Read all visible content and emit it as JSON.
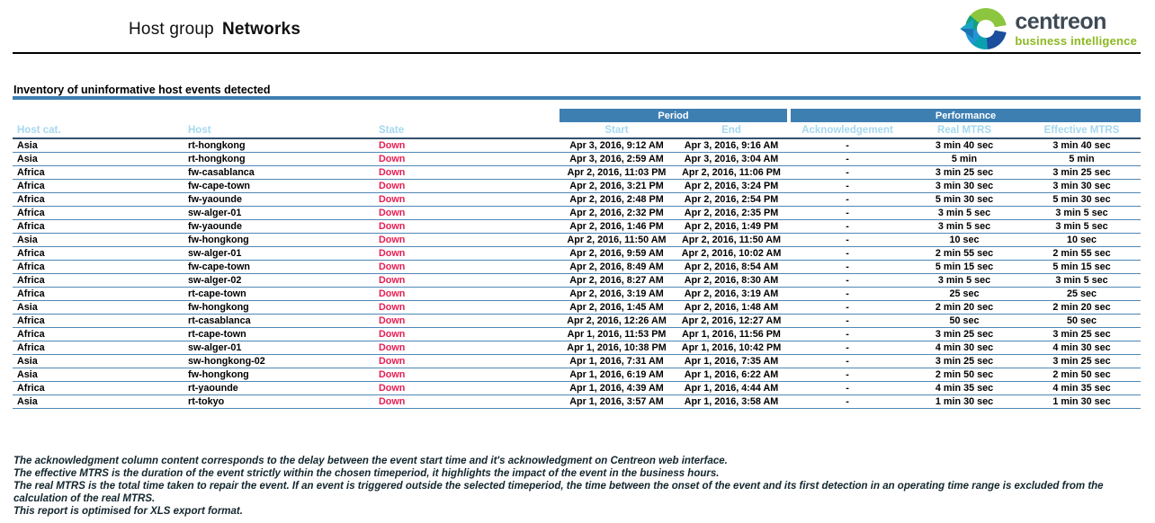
{
  "header": {
    "title_prefix": "Host group",
    "title_bold": "Networks"
  },
  "logo": {
    "brand": "centreon",
    "tagline": "business intelligence"
  },
  "section": {
    "heading": "Inventory of uninformative host events detected"
  },
  "table": {
    "group_headers": [
      {
        "label": "Period"
      },
      {
        "label": "Performance"
      }
    ],
    "columns": [
      "Host cat.",
      "Host",
      "State",
      "Start",
      "End",
      "Acknowledgement",
      "Real MTRS",
      "Effective MTRS"
    ],
    "column_keys": [
      "host-cat",
      "host",
      "state",
      "start",
      "end",
      "acknowledgement",
      "real-mtrs",
      "effective-mtrs"
    ],
    "rows": [
      [
        "Asia",
        "rt-hongkong",
        "Down",
        "Apr 3, 2016, 9:12 AM",
        "Apr 3, 2016, 9:16 AM",
        "-",
        "3 min 40 sec",
        "3 min 40 sec"
      ],
      [
        "Asia",
        "rt-hongkong",
        "Down",
        "Apr 3, 2016, 2:59 AM",
        "Apr 3, 2016, 3:04 AM",
        "-",
        "5 min",
        "5 min"
      ],
      [
        "Africa",
        "fw-casablanca",
        "Down",
        "Apr 2, 2016, 11:03 PM",
        "Apr 2, 2016, 11:06 PM",
        "-",
        "3 min 25 sec",
        "3 min 25 sec"
      ],
      [
        "Africa",
        "fw-cape-town",
        "Down",
        "Apr 2, 2016, 3:21 PM",
        "Apr 2, 2016, 3:24 PM",
        "-",
        "3 min 30 sec",
        "3 min 30 sec"
      ],
      [
        "Africa",
        "fw-yaounde",
        "Down",
        "Apr 2, 2016, 2:48 PM",
        "Apr 2, 2016, 2:54 PM",
        "-",
        "5 min 30 sec",
        "5 min 30 sec"
      ],
      [
        "Africa",
        "sw-alger-01",
        "Down",
        "Apr 2, 2016, 2:32 PM",
        "Apr 2, 2016, 2:35 PM",
        "-",
        "3 min 5 sec",
        "3 min 5 sec"
      ],
      [
        "Africa",
        "fw-yaounde",
        "Down",
        "Apr 2, 2016, 1:46 PM",
        "Apr 2, 2016, 1:49 PM",
        "-",
        "3 min 5 sec",
        "3 min 5 sec"
      ],
      [
        "Asia",
        "fw-hongkong",
        "Down",
        "Apr 2, 2016, 11:50 AM",
        "Apr 2, 2016, 11:50 AM",
        "-",
        "10 sec",
        "10 sec"
      ],
      [
        "Africa",
        "sw-alger-01",
        "Down",
        "Apr 2, 2016, 9:59 AM",
        "Apr 2, 2016, 10:02 AM",
        "-",
        "2 min 55 sec",
        "2 min 55 sec"
      ],
      [
        "Africa",
        "fw-cape-town",
        "Down",
        "Apr 2, 2016, 8:49 AM",
        "Apr 2, 2016, 8:54 AM",
        "-",
        "5 min 15 sec",
        "5 min 15 sec"
      ],
      [
        "Africa",
        "sw-alger-02",
        "Down",
        "Apr 2, 2016, 8:27 AM",
        "Apr 2, 2016, 8:30 AM",
        "-",
        "3 min 5 sec",
        "3 min 5 sec"
      ],
      [
        "Africa",
        "rt-cape-town",
        "Down",
        "Apr 2, 2016, 3:19 AM",
        "Apr 2, 2016, 3:19 AM",
        "-",
        "25 sec",
        "25 sec"
      ],
      [
        "Asia",
        "fw-hongkong",
        "Down",
        "Apr 2, 2016, 1:45 AM",
        "Apr 2, 2016, 1:48 AM",
        "-",
        "2 min 20 sec",
        "2 min 20 sec"
      ],
      [
        "Africa",
        "rt-casablanca",
        "Down",
        "Apr 2, 2016, 12:26 AM",
        "Apr 2, 2016, 12:27 AM",
        "-",
        "50 sec",
        "50 sec"
      ],
      [
        "Africa",
        "rt-cape-town",
        "Down",
        "Apr 1, 2016, 11:53 PM",
        "Apr 1, 2016, 11:56 PM",
        "-",
        "3 min 25 sec",
        "3 min 25 sec"
      ],
      [
        "Africa",
        "sw-alger-01",
        "Down",
        "Apr 1, 2016, 10:38 PM",
        "Apr 1, 2016, 10:42 PM",
        "-",
        "4 min 30 sec",
        "4 min 30 sec"
      ],
      [
        "Asia",
        "sw-hongkong-02",
        "Down",
        "Apr 1, 2016, 7:31 AM",
        "Apr 1, 2016, 7:35 AM",
        "-",
        "3 min 25 sec",
        "3 min 25 sec"
      ],
      [
        "Asia",
        "fw-hongkong",
        "Down",
        "Apr 1, 2016, 6:19 AM",
        "Apr 1, 2016, 6:22 AM",
        "-",
        "2 min 50 sec",
        "2 min 50 sec"
      ],
      [
        "Africa",
        "rt-yaounde",
        "Down",
        "Apr 1, 2016, 4:39 AM",
        "Apr 1, 2016, 4:44 AM",
        "-",
        "4 min 35 sec",
        "4 min 35 sec"
      ],
      [
        "Asia",
        "rt-tokyo",
        "Down",
        "Apr 1, 2016, 3:57 AM",
        "Apr 1, 2016, 3:58 AM",
        "-",
        "1 min 30 sec",
        "1 min 30 sec"
      ]
    ]
  },
  "footer": {
    "notes": [
      "The acknowledgment column content corresponds to the delay between the event start time and it's acknowledgment on Centreon web interface.",
      "The effective MTRS is the duration of the event strictly within the chosen timeperiod, it highlights the impact of the event in the business hours.",
      "The real MTRS is the total time taken to repair the event. If an event is triggered outside the selected timeperiod, the time between the onset of the event and its first detection in an operating time range  is excluded from the calculation of the real MTRS.",
      "This report is optimised for XLS export format."
    ]
  },
  "colors": {
    "header_bar": "#3e7fb2",
    "subheader_text": "#a5d8f0",
    "state_down": "#e71d52",
    "row_border": "#4f87b5",
    "brand_text": "#3e4a55",
    "tagline_green": "#8cb821"
  }
}
